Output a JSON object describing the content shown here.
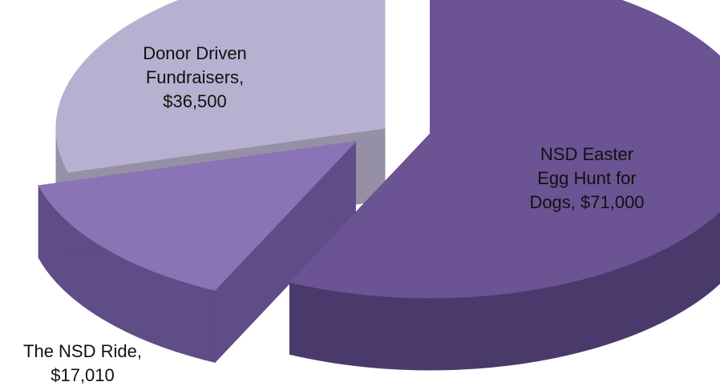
{
  "chart_data": {
    "type": "pie",
    "style": "3d-exploded",
    "title": "",
    "slices": [
      {
        "name": "NSD Easter Egg Hunt for Dogs",
        "value": 71000,
        "label_lines": [
          "NSD Easter",
          "Egg Hunt for",
          "Dogs,  $71,000"
        ],
        "top_color": "#6b5394",
        "side_color": "#4a3a6c"
      },
      {
        "name": "The NSD Ride",
        "value": 17010,
        "label_lines": [
          "The NSD Ride,",
          "$17,010"
        ],
        "top_color": "#8a74b6",
        "side_color": "#5e4d86"
      },
      {
        "name": "Donor Driven Fundraisers",
        "value": 36500,
        "label_lines": [
          "Donor Driven",
          "Fundraisers,",
          "$36,500"
        ],
        "top_color": "#b8b0d0",
        "side_color": "#9690a6"
      }
    ],
    "legend": "none"
  }
}
